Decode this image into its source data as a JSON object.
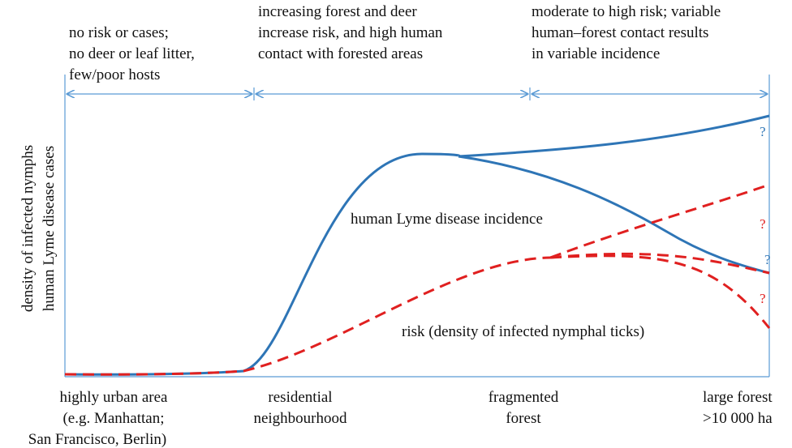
{
  "phases": [
    {
      "lines": [
        "no risk or cases;",
        "no deer or leaf litter,",
        "few/poor hosts"
      ]
    },
    {
      "lines": [
        "increasing forest and deer",
        "increase risk, and high human",
        "contact with forested areas"
      ]
    },
    {
      "lines": [
        "moderate to high risk; variable",
        "human–forest contact results",
        "in variable incidence"
      ]
    }
  ],
  "y_axis": {
    "lines": [
      "density of infected nymphs",
      "human Lyme disease cases"
    ]
  },
  "x_axis": [
    {
      "lines": [
        "highly urban area",
        "(e.g. Manhattan;",
        "San Francisco, Berlin)"
      ]
    },
    {
      "lines": [
        "residential",
        "neighbourhood"
      ]
    },
    {
      "lines": [
        "fragmented",
        "forest"
      ]
    },
    {
      "lines": [
        "large forest",
        ">10 000 ha"
      ]
    }
  ],
  "curves": {
    "incidence_label": "human Lyme disease incidence",
    "risk_label": "risk (density of infected nymphal ticks)"
  },
  "uncertainty_marks": [
    "?",
    "?",
    "?",
    "?"
  ]
}
